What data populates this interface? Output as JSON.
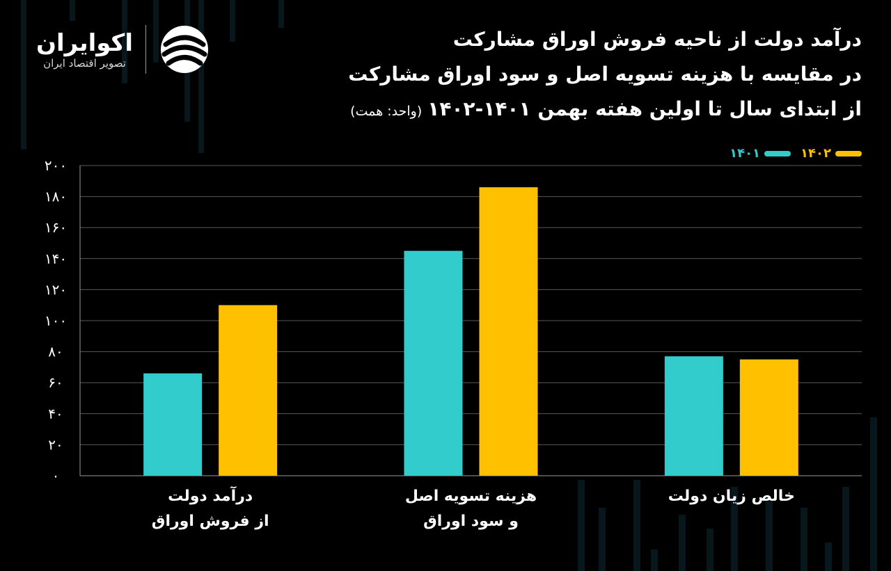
{
  "title": {
    "line1": "درآمد دولت از ناحیه فروش اوراق مشارکت",
    "line2": "در مقایسه با هزینه تسویه اصل و سود اوراق مشارکت",
    "line3": "از ابتدای سال تا اولین هفته بهمن ۱۴۰۱-۱۴۰۲",
    "unit": "(واحد: همت)"
  },
  "logo": {
    "name": "اکوایران",
    "tagline": "تصویر اقتصاد ایران"
  },
  "legend": [
    {
      "label": "۱۴۰۲",
      "color": "#FFC000"
    },
    {
      "label": "۱۴۰۱",
      "color": "#33CCCC"
    }
  ],
  "chart_data": {
    "type": "bar",
    "categories": [
      [
        "درآمد دولت",
        "از فروش اوراق"
      ],
      [
        "هزینه تسویه اصل",
        "و سود اوراق"
      ],
      [
        "خالص زیان دولت"
      ]
    ],
    "series": [
      {
        "name": "۱۴۰۱",
        "color": "#33CCCC",
        "values": [
          66,
          145,
          77
        ]
      },
      {
        "name": "۱۴۰۲",
        "color": "#FFC000",
        "values": [
          110,
          186,
          75
        ]
      }
    ],
    "y_ticks": [
      "۰",
      "۲۰",
      "۴۰",
      "۶۰",
      "۸۰",
      "۱۰۰",
      "۱۲۰",
      "۱۴۰",
      "۱۶۰",
      "۱۸۰",
      "۲۰۰"
    ],
    "ylim": [
      0,
      200
    ],
    "grid": true,
    "legend_position": "top-right"
  }
}
